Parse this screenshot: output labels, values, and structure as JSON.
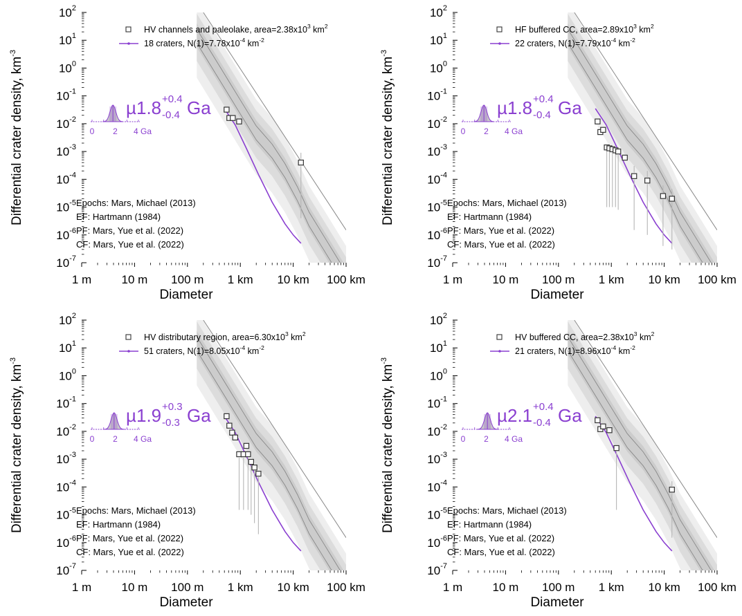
{
  "colors": {
    "fit": "#8a3fd0",
    "points": "#333333",
    "band_light": "#eeeeee",
    "band_mid": "#dcdcdc",
    "band_dark": "#cccccc",
    "iso_line": "#888888"
  },
  "chart_data": [
    {
      "type": "scatter",
      "xlabel": "Diameter",
      "ylabel": "Differential crater density, km",
      "ylabel_sup": "-3",
      "x_scale": "log",
      "y_scale": "log",
      "x_unit": "km",
      "xlim": [
        0.001,
        100
      ],
      "ylim": [
        1e-07,
        100
      ],
      "x_ticks": [
        {
          "v": 0.001,
          "label": "1 m"
        },
        {
          "v": 0.01,
          "label": "10 m"
        },
        {
          "v": 0.1,
          "label": "100 m"
        },
        {
          "v": 1,
          "label": "1 km"
        },
        {
          "v": 10,
          "label": "10 km"
        },
        {
          "v": 100,
          "label": "100 km"
        }
      ],
      "legend": {
        "points_label": "HV channels and paleolake, area=2.38x10",
        "points_label_sup": "3",
        "points_label_tail": " km",
        "points_label_tail_sup": "2",
        "fit_label": "18 craters, N(1)=7.78x10",
        "fit_label_sup": "-4",
        "fit_label_tail": " km",
        "fit_label_tail_sup": "-2"
      },
      "age": {
        "prefix": "µ1.8",
        "plus": "+0.4",
        "minus": "-0.4",
        "unit": "Ga",
        "hist_ticks": [
          "0",
          "2",
          "4 Ga"
        ],
        "value_ga": 1.8
      },
      "references": [
        "Epochs: Mars, Michael (2013)",
        "EF: Hartmann (1984)",
        "PF: Mars, Yue et al. (2022)",
        "CF: Mars, Yue et al. (2022)"
      ],
      "points": [
        {
          "x": 0.55,
          "y": 0.032,
          "ylo": null,
          "yhi": null
        },
        {
          "x": 0.62,
          "y": 0.016,
          "ylo": null,
          "yhi": null
        },
        {
          "x": 0.72,
          "y": 0.016,
          "ylo": null,
          "yhi": null
        },
        {
          "x": 0.95,
          "y": 0.012,
          "ylo": null,
          "yhi": null
        },
        {
          "x": 14,
          "y": 0.0004,
          "ylo": 4e-06,
          "yhi": 0.0009
        }
      ],
      "fit": {
        "x": [
          0.5,
          0.8,
          1.3,
          2.2,
          4,
          7,
          10,
          14
        ],
        "y": [
          0.035,
          0.009,
          0.0013,
          0.00015,
          1.5e-05,
          2.5e-06,
          1e-06,
          5e-07
        ]
      }
    },
    {
      "type": "scatter",
      "xlabel": "Diameter",
      "ylabel": "Differential crater density, km",
      "ylabel_sup": "-3",
      "x_scale": "log",
      "y_scale": "log",
      "x_unit": "km",
      "xlim": [
        0.001,
        100
      ],
      "ylim": [
        1e-07,
        100
      ],
      "x_ticks": [
        {
          "v": 0.001,
          "label": "1 m"
        },
        {
          "v": 0.01,
          "label": "10 m"
        },
        {
          "v": 0.1,
          "label": "100 m"
        },
        {
          "v": 1,
          "label": "1 km"
        },
        {
          "v": 10,
          "label": "10 km"
        },
        {
          "v": 100,
          "label": "100 km"
        }
      ],
      "legend": {
        "points_label": "HF buffered CC, area=2.89x10",
        "points_label_sup": "3",
        "points_label_tail": " km",
        "points_label_tail_sup": "2",
        "fit_label": "22 craters, N(1)=7.79x10",
        "fit_label_sup": "-4",
        "fit_label_tail": " km",
        "fit_label_tail_sup": "-2"
      },
      "age": {
        "prefix": "µ1.8",
        "plus": "+0.4",
        "minus": "-0.4",
        "unit": "Ga",
        "hist_ticks": [
          "0",
          "2",
          "4 Ga"
        ],
        "value_ga": 1.8
      },
      "references": [
        "Epochs: Mars, Michael (2013)",
        "EF: Hartmann (1984)",
        "PF: Mars, Yue et al. (2022)",
        "CF: Mars, Yue et al. (2022)"
      ],
      "points": [
        {
          "x": 0.55,
          "y": 0.012,
          "ylo": null,
          "yhi": null
        },
        {
          "x": 0.62,
          "y": 0.005,
          "ylo": null,
          "yhi": null
        },
        {
          "x": 0.7,
          "y": 0.006,
          "ylo": null,
          "yhi": null
        },
        {
          "x": 0.82,
          "y": 0.0014,
          "ylo": 1e-05,
          "yhi": null
        },
        {
          "x": 0.92,
          "y": 0.0013,
          "ylo": 1e-05,
          "yhi": null
        },
        {
          "x": 1.05,
          "y": 0.0012,
          "ylo": 1e-05,
          "yhi": null
        },
        {
          "x": 1.2,
          "y": 0.0011,
          "ylo": 1e-05,
          "yhi": null
        },
        {
          "x": 1.35,
          "y": 0.001,
          "ylo": 8e-06,
          "yhi": null
        },
        {
          "x": 1.8,
          "y": 0.0006,
          "ylo": null,
          "yhi": null
        },
        {
          "x": 2.7,
          "y": 0.00013,
          "ylo": 1.5e-06,
          "yhi": 0.0003
        },
        {
          "x": 4.8,
          "y": 9e-05,
          "ylo": 1e-06,
          "yhi": 0.0002
        },
        {
          "x": 9.5,
          "y": 2.5e-05,
          "ylo": 4e-07,
          "yhi": 6e-05
        },
        {
          "x": 14,
          "y": 2e-05,
          "ylo": 3e-07,
          "yhi": 4.5e-05
        }
      ],
      "fit": {
        "x": [
          0.5,
          0.8,
          1.3,
          2.2,
          4,
          7,
          10,
          14
        ],
        "y": [
          0.035,
          0.009,
          0.0013,
          0.00015,
          1.5e-05,
          2.5e-06,
          1e-06,
          5e-07
        ]
      }
    },
    {
      "type": "scatter",
      "xlabel": "Diameter",
      "ylabel": "Differential crater density, km",
      "ylabel_sup": "-3",
      "x_scale": "log",
      "y_scale": "log",
      "x_unit": "km",
      "xlim": [
        0.001,
        100
      ],
      "ylim": [
        1e-07,
        100
      ],
      "x_ticks": [
        {
          "v": 0.001,
          "label": "1 m"
        },
        {
          "v": 0.01,
          "label": "10 m"
        },
        {
          "v": 0.1,
          "label": "100 m"
        },
        {
          "v": 1,
          "label": "1 km"
        },
        {
          "v": 10,
          "label": "10 km"
        },
        {
          "v": 100,
          "label": "100 km"
        }
      ],
      "legend": {
        "points_label": "HV distributary region, area=6.30x10",
        "points_label_sup": "3",
        "points_label_tail": " km",
        "points_label_tail_sup": "2",
        "fit_label": "51 craters, N(1)=8.05x10",
        "fit_label_sup": "-4",
        "fit_label_tail": " km",
        "fit_label_tail_sup": "-2"
      },
      "age": {
        "prefix": "µ1.9",
        "plus": "+0.3",
        "minus": "-0.3",
        "unit": "Ga",
        "hist_ticks": [
          "0",
          "2",
          "4 Ga"
        ],
        "value_ga": 1.9
      },
      "references": [
        "Epochs: Mars, Michael (2013)",
        "EF: Hartmann (1984)",
        "PF: Mars, Yue et al. (2022)",
        "CF: Mars, Yue et al. (2022)"
      ],
      "points": [
        {
          "x": 0.55,
          "y": 0.035,
          "ylo": null,
          "yhi": null
        },
        {
          "x": 0.62,
          "y": 0.016,
          "ylo": null,
          "yhi": null
        },
        {
          "x": 0.7,
          "y": 0.009,
          "ylo": null,
          "yhi": null
        },
        {
          "x": 0.8,
          "y": 0.006,
          "ylo": null,
          "yhi": null
        },
        {
          "x": 0.95,
          "y": 0.0015,
          "ylo": 1.5e-05,
          "yhi": null
        },
        {
          "x": 1.15,
          "y": 0.0015,
          "ylo": 1.5e-05,
          "yhi": null
        },
        {
          "x": 1.3,
          "y": 0.003,
          "ylo": null,
          "yhi": null
        },
        {
          "x": 1.4,
          "y": 0.0015,
          "ylo": 1.5e-05,
          "yhi": null
        },
        {
          "x": 1.6,
          "y": 0.0008,
          "ylo": 1e-05,
          "yhi": null
        },
        {
          "x": 1.85,
          "y": 0.0005,
          "ylo": 5e-06,
          "yhi": null
        },
        {
          "x": 2.2,
          "y": 0.0003,
          "ylo": 2e-06,
          "yhi": null
        }
      ],
      "fit": {
        "x": [
          0.5,
          0.8,
          1.3,
          2.2,
          4,
          7,
          10,
          14
        ],
        "y": [
          0.035,
          0.009,
          0.0013,
          0.00015,
          1.5e-05,
          2.5e-06,
          1e-06,
          5e-07
        ]
      }
    },
    {
      "type": "scatter",
      "xlabel": "Diameter",
      "ylabel": "Differential crater density, km",
      "ylabel_sup": "-3",
      "x_scale": "log",
      "y_scale": "log",
      "x_unit": "km",
      "xlim": [
        0.001,
        100
      ],
      "ylim": [
        1e-07,
        100
      ],
      "x_ticks": [
        {
          "v": 0.001,
          "label": "1 m"
        },
        {
          "v": 0.01,
          "label": "10 m"
        },
        {
          "v": 0.1,
          "label": "100 m"
        },
        {
          "v": 1,
          "label": "1 km"
        },
        {
          "v": 10,
          "label": "10 km"
        },
        {
          "v": 100,
          "label": "100 km"
        }
      ],
      "legend": {
        "points_label": "HV buffered CC, area=2.38x10",
        "points_label_sup": "3",
        "points_label_tail": " km",
        "points_label_tail_sup": "2",
        "fit_label": "21 craters, N(1)=8.96x10",
        "fit_label_sup": "-4",
        "fit_label_tail": " km",
        "fit_label_tail_sup": "-2"
      },
      "age": {
        "prefix": "µ2.1",
        "plus": "+0.4",
        "minus": "-0.4",
        "unit": "Ga",
        "hist_ticks": [
          "0",
          "2",
          "4 Ga"
        ],
        "value_ga": 2.1
      },
      "references": [
        "Epochs: Mars, Michael (2013)",
        "EF: Hartmann (1984)",
        "PF: Mars, Yue et al. (2022)",
        "CF: Mars, Yue et al. (2022)"
      ],
      "points": [
        {
          "x": 0.55,
          "y": 0.025,
          "ylo": null,
          "yhi": null
        },
        {
          "x": 0.62,
          "y": 0.012,
          "ylo": null,
          "yhi": null
        },
        {
          "x": 0.7,
          "y": 0.015,
          "ylo": null,
          "yhi": null
        },
        {
          "x": 0.92,
          "y": 0.011,
          "ylo": null,
          "yhi": null
        },
        {
          "x": 1.25,
          "y": 0.0025,
          "ylo": 1.5e-05,
          "yhi": null
        },
        {
          "x": 14,
          "y": 8e-05,
          "ylo": 1.5e-06,
          "yhi": 0.00016
        }
      ],
      "fit": {
        "x": [
          0.5,
          0.8,
          1.3,
          2.2,
          4,
          7,
          10,
          14
        ],
        "y": [
          0.035,
          0.009,
          0.0013,
          0.00015,
          1.5e-05,
          2.5e-06,
          1e-06,
          5e-07
        ]
      }
    }
  ]
}
